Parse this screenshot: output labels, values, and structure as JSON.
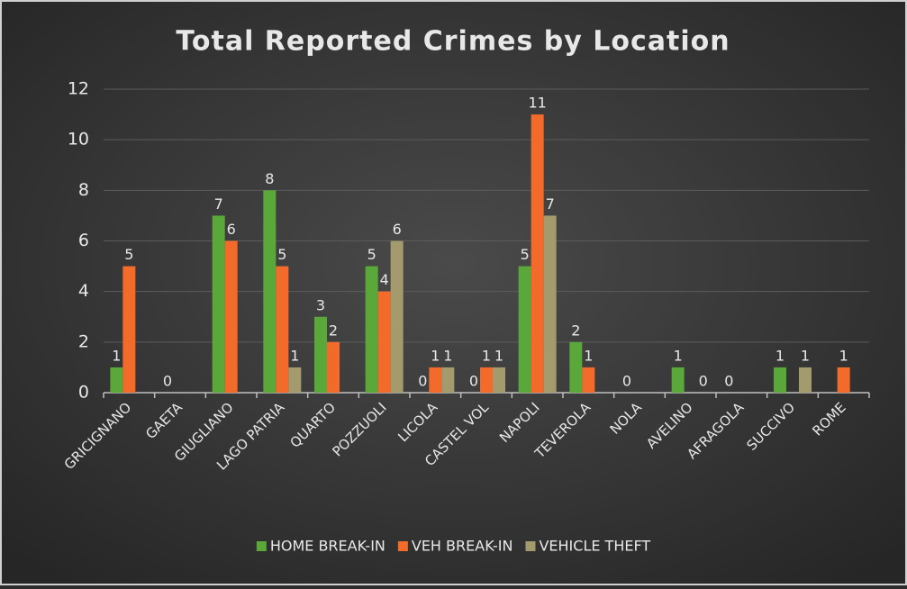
{
  "chart_data": {
    "type": "bar",
    "title": "Total Reported Crimes by Location",
    "categories": [
      "GRICIGNANO",
      "GAETA",
      "GIUGLIANO",
      "LAGO PATRIA",
      "QUARTO",
      "POZZUOLI",
      "LICOLA",
      "CASTEL VOL",
      "NAPOLI",
      "TEVEROLA",
      "NOLA",
      "AVELINO",
      "AFRAGOLA",
      "SUCCIVO",
      "ROME"
    ],
    "series": [
      {
        "name": "HOME BREAK-IN",
        "color": "#5aa83a",
        "values": [
          1,
          0,
          7,
          8,
          3,
          5,
          0,
          0,
          5,
          2,
          0,
          1,
          0,
          1,
          null
        ]
      },
      {
        "name": "VEH BREAK-IN",
        "color": "#f26b2a",
        "values": [
          5,
          null,
          6,
          5,
          2,
          4,
          1,
          1,
          11,
          1,
          null,
          null,
          null,
          null,
          1
        ]
      },
      {
        "name": "VEHICLE THEFT",
        "color": "#a39a6e",
        "values": [
          null,
          null,
          null,
          1,
          null,
          6,
          1,
          1,
          7,
          null,
          null,
          0,
          null,
          1,
          null
        ]
      }
    ],
    "ylim": [
      0,
      12
    ],
    "yticks": [
      0,
      2,
      4,
      6,
      8,
      10,
      12
    ],
    "grid": true,
    "legend": "bottom"
  }
}
